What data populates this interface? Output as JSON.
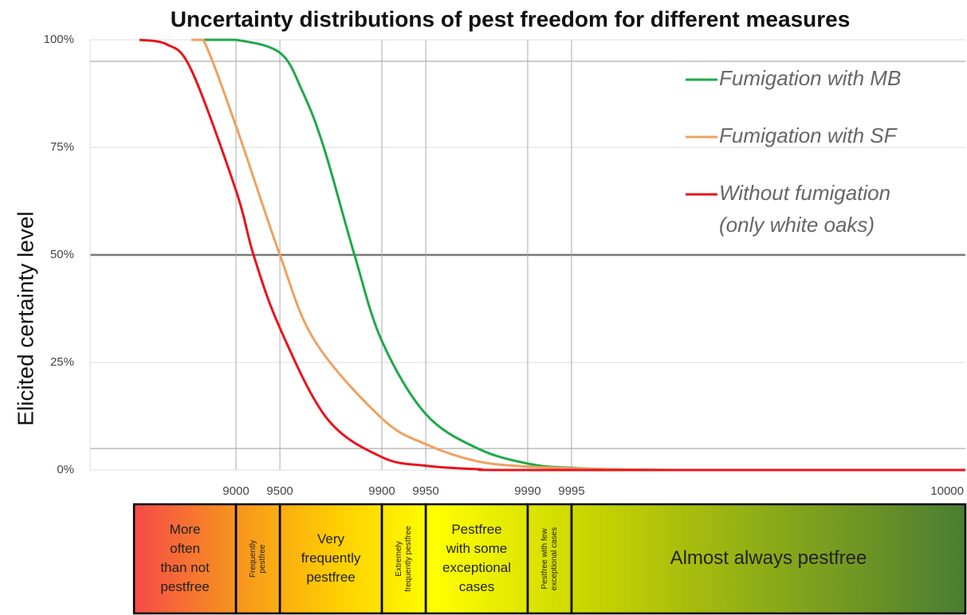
{
  "chart_data": {
    "type": "line",
    "title": "Uncertainty distributions of pest freedom for different measures",
    "y_label": "Elicited certainty level",
    "xlim": [
      0,
      10000
    ],
    "ylim": [
      0,
      100
    ],
    "xticks": [
      9000,
      9500,
      9900,
      9950,
      9990,
      9995,
      10000
    ],
    "yticks": [
      {
        "value": 0,
        "label": "0%"
      },
      {
        "value": 25,
        "label": "25%"
      },
      {
        "value": 50,
        "label": "50%"
      },
      {
        "value": 75,
        "label": "75%"
      },
      {
        "value": 100,
        "label": "100%"
      }
    ],
    "reference_lines": [
      5,
      95
    ],
    "grid": true,
    "legend": "upper right",
    "series": [
      {
        "name": "Fumigation with MB",
        "color": "#1fa84a",
        "x": [
          8325,
          9000,
          9500,
          9650,
          9750,
          9846,
          9900,
          9950,
          9978,
          9990,
          9995,
          9999,
          10000
        ],
        "values": [
          100,
          100,
          97,
          88,
          75,
          50,
          30,
          13,
          5,
          1.5,
          0.5,
          0,
          0
        ]
      },
      {
        "name": "Fumigation with SF",
        "color": "#f0a060",
        "x": [
          7977,
          8325,
          9000,
          9500,
          9712,
          9900,
          9950,
          9978,
          9990,
          9995,
          9999,
          10000
        ],
        "values": [
          100,
          100,
          80,
          50,
          30,
          12,
          6,
          2,
          0.8,
          0.4,
          0,
          0
        ]
      },
      {
        "name": "Without fumigation (only white oaks)",
        "color": "#e8141c",
        "x": [
          5416,
          7000,
          7977,
          9000,
          9242,
          9500,
          9762,
          9900,
          9950,
          9978,
          9990,
          10000
        ],
        "values": [
          100,
          99,
          93,
          65,
          50,
          33,
          12,
          3,
          1,
          0.2,
          0,
          0
        ]
      }
    ],
    "bands": [
      {
        "label": [
          "More",
          "often",
          "than not",
          "pestfree"
        ],
        "from": 5000,
        "to": 9000,
        "vertical": false
      },
      {
        "label": [
          "Frequently",
          "pestfree"
        ],
        "from": 9000,
        "to": 9500,
        "vertical": true
      },
      {
        "label": [
          "Very",
          "frequently",
          "pestfree"
        ],
        "from": 9500,
        "to": 9900,
        "vertical": false
      },
      {
        "label": [
          "Extremely",
          "frequently pestfree"
        ],
        "from": 9900,
        "to": 9950,
        "vertical": true
      },
      {
        "label": [
          "Pestfree",
          "with some",
          "exceptional",
          "cases"
        ],
        "from": 9950,
        "to": 9990,
        "vertical": false
      },
      {
        "label": [
          "Pestfree with few",
          "exceptional cases"
        ],
        "from": 9990,
        "to": 9995,
        "vertical": true
      },
      {
        "label": [
          "Almost always pestfree"
        ],
        "from": 9995,
        "to": 10000,
        "vertical": false
      }
    ]
  }
}
